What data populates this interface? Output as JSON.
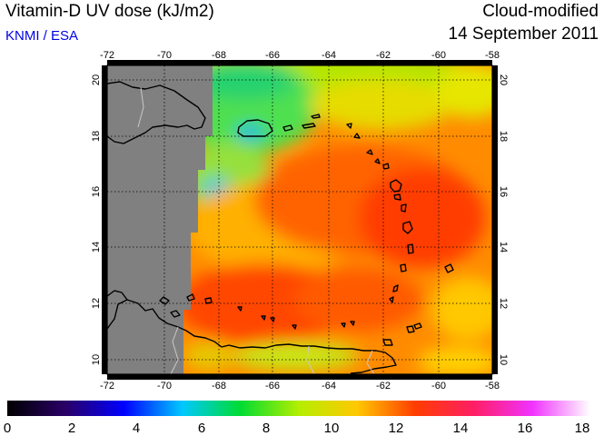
{
  "header": {
    "title": "Vitamin-D UV dose (kJ/m2)",
    "organization": "KNMI / ESA",
    "mode": "Cloud-modified",
    "date": "14 September 2011"
  },
  "map": {
    "lon_range": [
      -72,
      -58
    ],
    "lat_range": [
      9.5,
      20.5
    ],
    "lon_ticks": [
      "-72",
      "-70",
      "-68",
      "-66",
      "-64",
      "-62",
      "-60",
      "-58"
    ],
    "lat_ticks": [
      "10",
      "12",
      "14",
      "16",
      "18",
      "20"
    ],
    "no_data_color": "#808080",
    "coastline_color": "#000000",
    "border_color": "#c8c8c8",
    "gridlines": "dotted"
  },
  "colorbar": {
    "labels": [
      "0",
      "2",
      "4",
      "6",
      "8",
      "10",
      "12",
      "14",
      "16",
      "18"
    ],
    "range": [
      0,
      18
    ],
    "colors": [
      "#000000",
      "#2a0066",
      "#0000ff",
      "#00c8ff",
      "#00dc32",
      "#b4ee00",
      "#ffc800",
      "#ff3c00",
      "#ff1e64",
      "#f032ff",
      "#ffffff"
    ]
  }
}
